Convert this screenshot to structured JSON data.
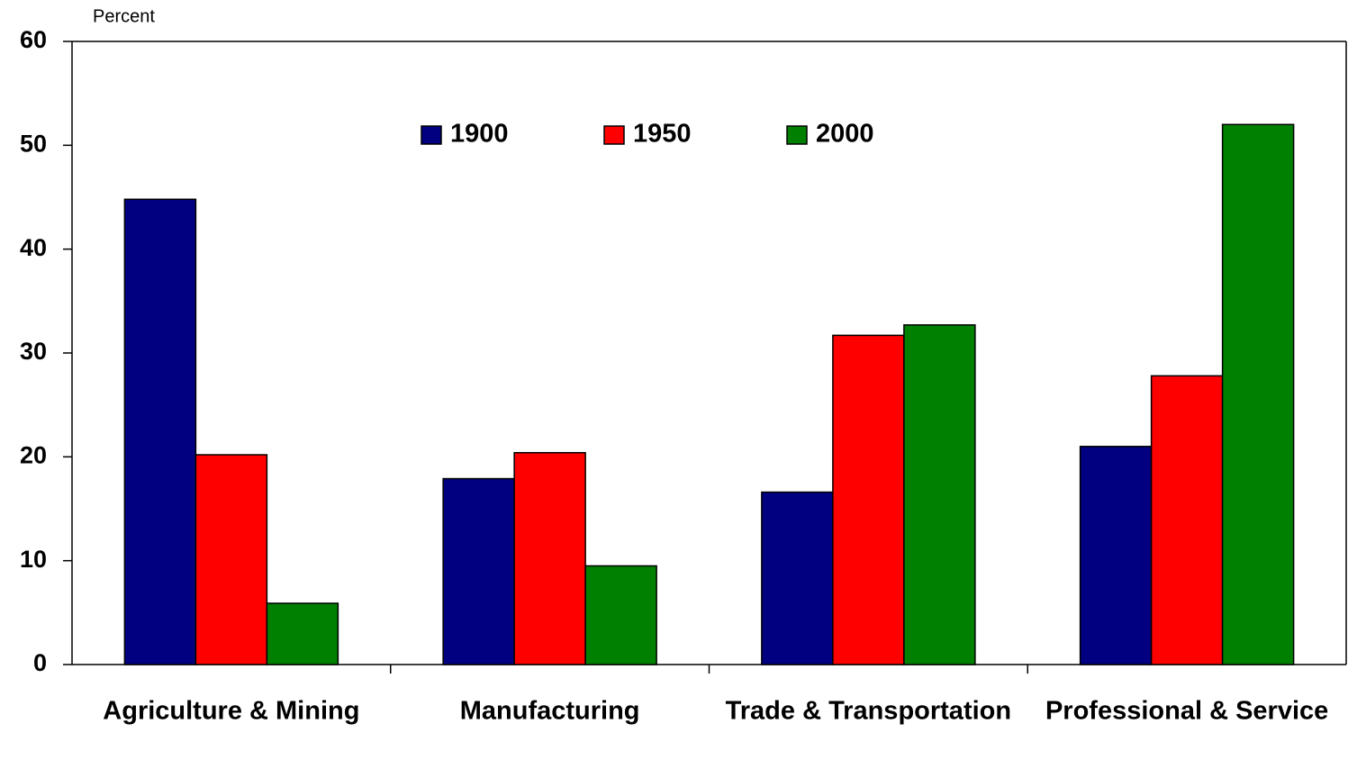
{
  "chart_data": {
    "type": "bar",
    "y_label": "Percent",
    "categories": [
      "Agriculture & Mining",
      "Manufacturing",
      "Trade & Transportation",
      "Professional & Service"
    ],
    "series": [
      {
        "name": "1900",
        "color": "#000080",
        "values": [
          44.8,
          17.9,
          16.6,
          21.0
        ]
      },
      {
        "name": "1950",
        "color": "#ff0000",
        "values": [
          20.2,
          20.4,
          31.7,
          27.8
        ]
      },
      {
        "name": "2000",
        "color": "#008000",
        "values": [
          5.9,
          9.5,
          32.7,
          52.0
        ]
      }
    ],
    "ylim": [
      0,
      60
    ],
    "yticks": [
      0,
      10,
      20,
      30,
      40,
      50,
      60
    ],
    "grid": false,
    "legend": "top"
  }
}
